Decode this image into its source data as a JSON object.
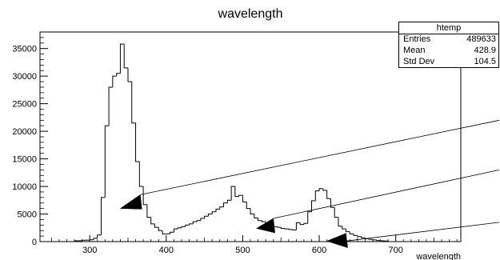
{
  "chart_data": {
    "type": "histogram",
    "title": "wavelength",
    "xlabel": "wavelength",
    "ylabel": "",
    "xlim": [
      235,
      785
    ],
    "ylim": [
      0,
      38000
    ],
    "bin_width": 5,
    "x_ticks": [
      300,
      400,
      500,
      600,
      700
    ],
    "x_tick_labels": [
      "300",
      "400",
      "500",
      "600",
      "700"
    ],
    "y_ticks": [
      0,
      5000,
      10000,
      15000,
      20000,
      25000,
      30000,
      35000
    ],
    "y_tick_labels": [
      "0",
      "5000",
      "10000",
      "15000",
      "20000",
      "25000",
      "30000",
      "35000"
    ],
    "bins": [
      [
        280,
        150
      ],
      [
        285,
        150
      ],
      [
        290,
        250
      ],
      [
        295,
        280
      ],
      [
        300,
        330
      ],
      [
        305,
        600
      ],
      [
        310,
        1200
      ],
      [
        315,
        8000
      ],
      [
        320,
        21000
      ],
      [
        325,
        28000
      ],
      [
        330,
        30000
      ],
      [
        335,
        30500
      ],
      [
        340,
        35800
      ],
      [
        345,
        31500
      ],
      [
        350,
        29000
      ],
      [
        355,
        21500
      ],
      [
        360,
        14500
      ],
      [
        365,
        10000
      ],
      [
        370,
        6700
      ],
      [
        375,
        4400
      ],
      [
        380,
        3200
      ],
      [
        385,
        2600
      ],
      [
        390,
        2000
      ],
      [
        395,
        1400
      ],
      [
        400,
        1400
      ],
      [
        405,
        1700
      ],
      [
        410,
        2300
      ],
      [
        415,
        2500
      ],
      [
        420,
        2700
      ],
      [
        425,
        3000
      ],
      [
        430,
        3200
      ],
      [
        435,
        3600
      ],
      [
        440,
        3800
      ],
      [
        445,
        4200
      ],
      [
        450,
        4600
      ],
      [
        455,
        5000
      ],
      [
        460,
        5400
      ],
      [
        465,
        5900
      ],
      [
        470,
        6300
      ],
      [
        475,
        7000
      ],
      [
        480,
        7500
      ],
      [
        485,
        10000
      ],
      [
        490,
        8200
      ],
      [
        495,
        8400
      ],
      [
        500,
        7200
      ],
      [
        505,
        6000
      ],
      [
        510,
        5000
      ],
      [
        515,
        4300
      ],
      [
        520,
        3800
      ],
      [
        525,
        3600
      ],
      [
        530,
        3300
      ],
      [
        535,
        3000
      ],
      [
        540,
        2700
      ],
      [
        545,
        2600
      ],
      [
        550,
        2400
      ],
      [
        555,
        2300
      ],
      [
        560,
        2200
      ],
      [
        565,
        2100
      ],
      [
        570,
        3400
      ],
      [
        575,
        3100
      ],
      [
        580,
        3300
      ],
      [
        585,
        5400
      ],
      [
        590,
        7400
      ],
      [
        595,
        9200
      ],
      [
        600,
        9600
      ],
      [
        605,
        9300
      ],
      [
        610,
        7800
      ],
      [
        615,
        6200
      ],
      [
        620,
        4400
      ],
      [
        625,
        2800
      ],
      [
        630,
        2300
      ],
      [
        635,
        1800
      ],
      [
        640,
        1400
      ],
      [
        645,
        1100
      ],
      [
        650,
        900
      ],
      [
        655,
        700
      ],
      [
        660,
        500
      ],
      [
        665,
        400
      ],
      [
        670,
        300
      ],
      [
        675,
        200
      ],
      [
        680,
        150
      ],
      [
        685,
        100
      ]
    ],
    "annotation_lines": [
      {
        "from": [
          366,
          8500
        ],
        "to": [
          785,
          22000
        ]
      },
      {
        "from": [
          540,
          4200
        ],
        "to": [
          785,
          13000
        ]
      },
      {
        "from": [
          635,
          100
        ],
        "to": [
          785,
          3500
        ]
      }
    ],
    "arrows": [
      {
        "tip": [
          366,
          8500
        ],
        "base_x": 340,
        "base_y": 6000,
        "dir": "up-right"
      },
      {
        "tip": [
          540,
          4200
        ],
        "base_x": 518,
        "base_y": 2400,
        "dir": "up-right"
      },
      {
        "tip": [
          635,
          1500
        ],
        "base_x": 610,
        "base_y": 100,
        "dir": "up-right"
      }
    ],
    "grid": false,
    "stats_box": {
      "title": "htemp",
      "rows": [
        {
          "label": "Entries",
          "value": "489633"
        },
        {
          "label": "Mean",
          "value": "428.9"
        },
        {
          "label": "Std Dev",
          "value": "104.5"
        }
      ]
    }
  }
}
